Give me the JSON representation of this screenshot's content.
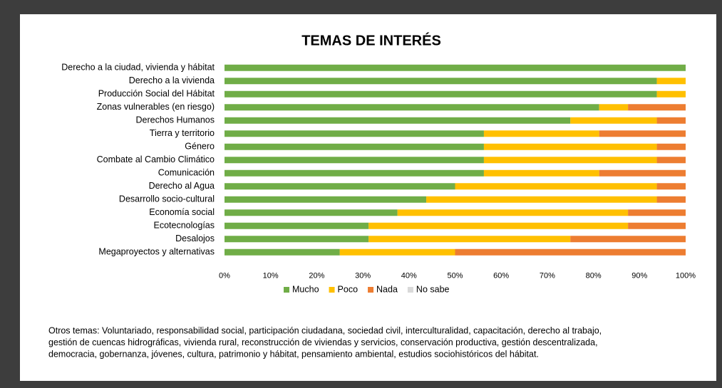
{
  "chart_data": {
    "type": "stacked_bar_horizontal",
    "title": "TEMAS DE INTERÉS",
    "categories": [
      "Derecho a la ciudad, vivienda y hábitat",
      "Derecho a la vivienda",
      "Producción Social del Hábitat",
      "Zonas vulnerables (en riesgo)",
      "Derechos Humanos",
      "Tierra y territorio",
      "Género",
      "Combate al Cambio Climático",
      "Comunicación",
      "Derecho al Agua",
      "Desarrollo socio-cultural",
      "Economía social",
      "Ecotecnologías",
      "Desalojos",
      "Megaproyectos y alternativas"
    ],
    "series": [
      {
        "name": "Mucho",
        "color": "#70ad47",
        "values": [
          100,
          93.75,
          93.75,
          81.25,
          75,
          56.25,
          56.25,
          56.25,
          56.25,
          50,
          43.75,
          37.5,
          31.25,
          31.25,
          25
        ]
      },
      {
        "name": "Poco",
        "color": "#ffc000",
        "values": [
          0,
          6.25,
          6.25,
          6.25,
          18.75,
          25,
          37.5,
          37.5,
          25,
          43.75,
          50,
          50,
          56.25,
          43.75,
          25
        ]
      },
      {
        "name": "Nada",
        "color": "#ed7d31",
        "values": [
          0,
          0,
          0,
          12.5,
          6.25,
          18.75,
          6.25,
          6.25,
          18.75,
          6.25,
          6.25,
          12.5,
          12.5,
          25,
          50
        ]
      },
      {
        "name": "No sabe",
        "color": "#d9d9d9",
        "values": [
          0,
          0,
          0,
          0,
          0,
          0,
          0,
          0,
          0,
          0,
          0,
          0,
          0,
          0,
          0
        ]
      }
    ],
    "xlim": [
      0,
      100
    ],
    "xticks": [
      {
        "value": 0,
        "label": "0%"
      },
      {
        "value": 10,
        "label": "10%"
      },
      {
        "value": 20,
        "label": "20%"
      },
      {
        "value": 30,
        "label": "30%"
      },
      {
        "value": 40,
        "label": "40%"
      },
      {
        "value": 50,
        "label": "50%"
      },
      {
        "value": 60,
        "label": "60%"
      },
      {
        "value": 70,
        "label": "70%"
      },
      {
        "value": 80,
        "label": "80%"
      },
      {
        "value": 90,
        "label": "90%"
      },
      {
        "value": 100,
        "label": "100%"
      }
    ],
    "legend": "bottom",
    "annotations": [
      "Otros temas: Voluntariado, responsabilidad social, participación ciudadana, sociedad civil, interculturalidad, capacitación, derecho al trabajo,",
      "gestión de cuencas hidrográficas, vivienda rural, reconstrucción de viviendas y servicios, conservación productiva, gestión descentralizada,",
      "democracia, gobernanza, jóvenes, cultura, patrimonio y hábitat, pensamiento ambiental, estudios sociohistóricos del hábitat."
    ]
  }
}
